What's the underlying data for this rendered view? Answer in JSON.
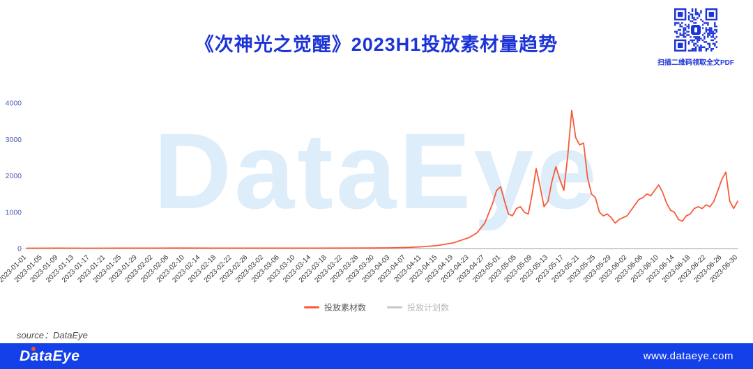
{
  "page": {
    "title": "《次神光之觉醒》2023H1投放素材量趋势",
    "qr_caption": "扫描二维码领取全文PDF",
    "watermark": "DataEye",
    "source": "source：DataEye",
    "footer": {
      "logo": "DataEye",
      "website": "www.dataeye.com"
    }
  },
  "colors": {
    "title_blue": "#1c33d6",
    "series_red": "#f85a3a",
    "series_gray": "#c4c7cc",
    "legend_text": "#595959",
    "legend_text_disabled": "#b5b8bd",
    "axis_label_y": "#4a57b5",
    "axis_label_x": "#303030",
    "axis_line": "#e3e3e3",
    "footer_bg": "#1440ea",
    "logo_accent": "#f2542b",
    "qr_blue": "#1c33d6",
    "watermark_blue": "#d4e8f9"
  },
  "chart_data": {
    "type": "line",
    "title": "《次神光之觉醒》2023H1投放素材量趋势",
    "xlabel": "",
    "ylabel": "",
    "grid": false,
    "legend_position": "bottom",
    "ylim": [
      0,
      4000
    ],
    "y_ticks": [
      0,
      1000,
      2000,
      3000,
      4000
    ],
    "x_day_range": [
      0,
      180
    ],
    "x_tick_step_days": 4,
    "x_tick_labels": [
      "2023-01-01",
      "2023-01-05",
      "2023-01-09",
      "2023-01-13",
      "2023-01-17",
      "2023-01-21",
      "2023-01-25",
      "2023-01-29",
      "2023-02-02",
      "2023-02-06",
      "2023-02-10",
      "2023-02-14",
      "2023-02-18",
      "2023-02-22",
      "2023-02-26",
      "2023-03-02",
      "2023-03-06",
      "2023-03-10",
      "2023-03-14",
      "2023-03-18",
      "2023-03-22",
      "2023-03-26",
      "2023-03-30",
      "2023-04-03",
      "2023-04-07",
      "2023-04-11",
      "2023-04-15",
      "2023-04-19",
      "2023-04-23",
      "2023-04-27",
      "2023-05-01",
      "2023-05-05",
      "2023-05-09",
      "2023-05-13",
      "2023-05-17",
      "2023-05-21",
      "2023-05-25",
      "2023-05-29",
      "2023-06-02",
      "2023-06-06",
      "2023-06-10",
      "2023-06-14",
      "2023-06-18",
      "2023-06-22",
      "2023-06-26",
      "2023-06-30"
    ],
    "series": [
      {
        "name": "投放计划数",
        "color": "#c4c7cc",
        "points": [
          [
            0,
            0
          ],
          [
            180,
            0
          ]
        ]
      },
      {
        "name": "投放素材数",
        "color": "#f85a3a",
        "points": [
          [
            0,
            10
          ],
          [
            8,
            12
          ],
          [
            16,
            10
          ],
          [
            24,
            12
          ],
          [
            32,
            11
          ],
          [
            40,
            13
          ],
          [
            48,
            11
          ],
          [
            56,
            12
          ],
          [
            64,
            11
          ],
          [
            72,
            12
          ],
          [
            80,
            14
          ],
          [
            88,
            16
          ],
          [
            92,
            20
          ],
          [
            96,
            28
          ],
          [
            100,
            48
          ],
          [
            104,
            85
          ],
          [
            108,
            155
          ],
          [
            112,
            300
          ],
          [
            114,
            430
          ],
          [
            116,
            700
          ],
          [
            118,
            1250
          ],
          [
            119,
            1600
          ],
          [
            120,
            1700
          ],
          [
            121,
            1300
          ],
          [
            122,
            950
          ],
          [
            123,
            900
          ],
          [
            124,
            1100
          ],
          [
            125,
            1150
          ],
          [
            126,
            1000
          ],
          [
            127,
            950
          ],
          [
            128,
            1500
          ],
          [
            129,
            2200
          ],
          [
            130,
            1700
          ],
          [
            131,
            1150
          ],
          [
            132,
            1300
          ],
          [
            133,
            1850
          ],
          [
            134,
            2250
          ],
          [
            135,
            1900
          ],
          [
            136,
            1600
          ],
          [
            137,
            2550
          ],
          [
            138,
            3800
          ],
          [
            139,
            3050
          ],
          [
            140,
            2850
          ],
          [
            141,
            2900
          ],
          [
            142,
            1950
          ],
          [
            143,
            1500
          ],
          [
            144,
            1400
          ],
          [
            145,
            1000
          ],
          [
            146,
            900
          ],
          [
            147,
            950
          ],
          [
            148,
            850
          ],
          [
            149,
            700
          ],
          [
            150,
            800
          ],
          [
            151,
            850
          ],
          [
            152,
            900
          ],
          [
            153,
            1050
          ],
          [
            154,
            1200
          ],
          [
            155,
            1350
          ],
          [
            156,
            1400
          ],
          [
            157,
            1500
          ],
          [
            158,
            1450
          ],
          [
            159,
            1600
          ],
          [
            160,
            1750
          ],
          [
            161,
            1550
          ],
          [
            162,
            1250
          ],
          [
            163,
            1050
          ],
          [
            164,
            1000
          ],
          [
            165,
            800
          ],
          [
            166,
            750
          ],
          [
            167,
            900
          ],
          [
            168,
            950
          ],
          [
            169,
            1100
          ],
          [
            170,
            1150
          ],
          [
            171,
            1100
          ],
          [
            172,
            1200
          ],
          [
            173,
            1150
          ],
          [
            174,
            1300
          ],
          [
            175,
            1600
          ],
          [
            176,
            1900
          ],
          [
            177,
            2100
          ],
          [
            178,
            1300
          ],
          [
            179,
            1100
          ],
          [
            180,
            1300
          ]
        ]
      }
    ]
  }
}
